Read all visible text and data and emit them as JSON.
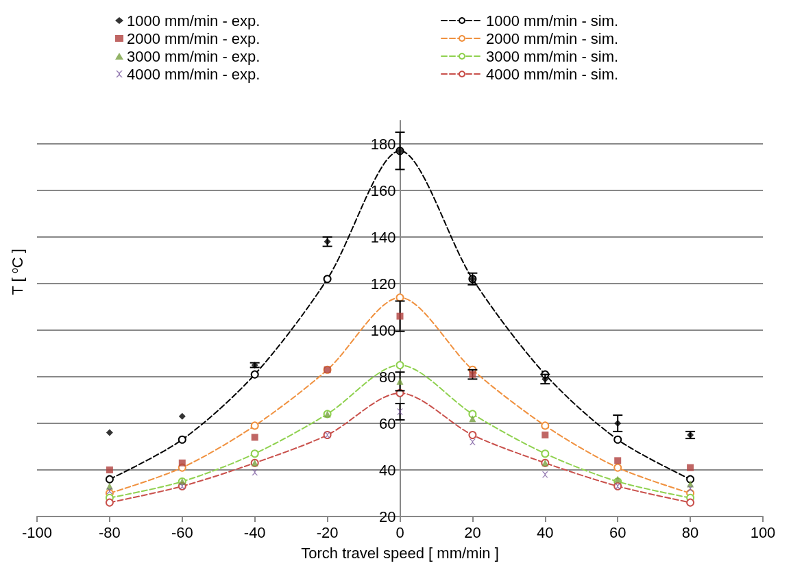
{
  "chart_data": {
    "type": "scatter",
    "xlabel": "Torch travel speed [ mm/min ]",
    "ylabel": "T [ $^{o}$C ]",
    "x": [
      -80,
      -60,
      -40,
      -20,
      0,
      20,
      40,
      60,
      80
    ],
    "xlim": [
      -100,
      100
    ],
    "xticks": [
      -100,
      -80,
      -60,
      -40,
      -20,
      0,
      20,
      40,
      60,
      80,
      100
    ],
    "ylim": [
      20,
      190
    ],
    "yticks": [
      20,
      40,
      60,
      80,
      100,
      120,
      140,
      160,
      180
    ],
    "grid": "y",
    "legend": "top",
    "series": [
      {
        "name": "1000 mm/min - exp.",
        "marker": "diamond",
        "color": "#000000",
        "values": [
          56,
          63,
          85,
          138,
          177,
          122,
          79,
          60,
          55
        ],
        "errors": [
          null,
          null,
          1,
          2,
          8,
          2.5,
          2,
          3.5,
          1.5
        ]
      },
      {
        "name": "2000 mm/min - exp.",
        "marker": "square",
        "color": "#b0403d",
        "values": [
          40,
          43,
          54,
          83,
          106,
          81,
          55,
          44,
          41
        ],
        "errors": [
          null,
          null,
          null,
          null,
          6.5,
          2,
          null,
          null,
          null
        ]
      },
      {
        "name": "3000 mm/min - exp.",
        "marker": "triangle",
        "color": "#77a040",
        "values": [
          33,
          35,
          43,
          64,
          78,
          62,
          43,
          36,
          34
        ],
        "errors": [
          null,
          null,
          null,
          null,
          4,
          null,
          null,
          null,
          null
        ]
      },
      {
        "name": "4000 mm/min - exp.",
        "marker": "cross",
        "color": "#7a5a9f",
        "values": [
          31,
          33,
          39,
          55,
          65,
          52,
          38,
          33,
          32
        ],
        "errors": [
          null,
          null,
          null,
          null,
          3.5,
          null,
          null,
          null,
          null
        ]
      },
      {
        "name": "1000 mm/min - sim.",
        "type": "line",
        "marker": "circle",
        "line_style": "dashed",
        "color": "#000000",
        "values": [
          36,
          53,
          81,
          122,
          177,
          122,
          81,
          53,
          36
        ]
      },
      {
        "name": "2000 mm/min - sim.",
        "type": "line",
        "marker": "circle",
        "line_style": "dashed",
        "color": "#f0913f",
        "values": [
          30,
          41,
          59,
          83,
          114,
          83,
          59,
          41,
          30
        ]
      },
      {
        "name": "3000 mm/min - sim.",
        "type": "line",
        "marker": "circle",
        "line_style": "dashed",
        "color": "#8fd14f",
        "values": [
          28,
          35,
          47,
          64,
          85,
          64,
          47,
          35,
          28
        ]
      },
      {
        "name": "4000 mm/min - sim.",
        "type": "line",
        "marker": "circle",
        "line_style": "dashed",
        "color": "#c9504b",
        "values": [
          26,
          33,
          43,
          55,
          73,
          55,
          43,
          33,
          26
        ]
      }
    ]
  }
}
